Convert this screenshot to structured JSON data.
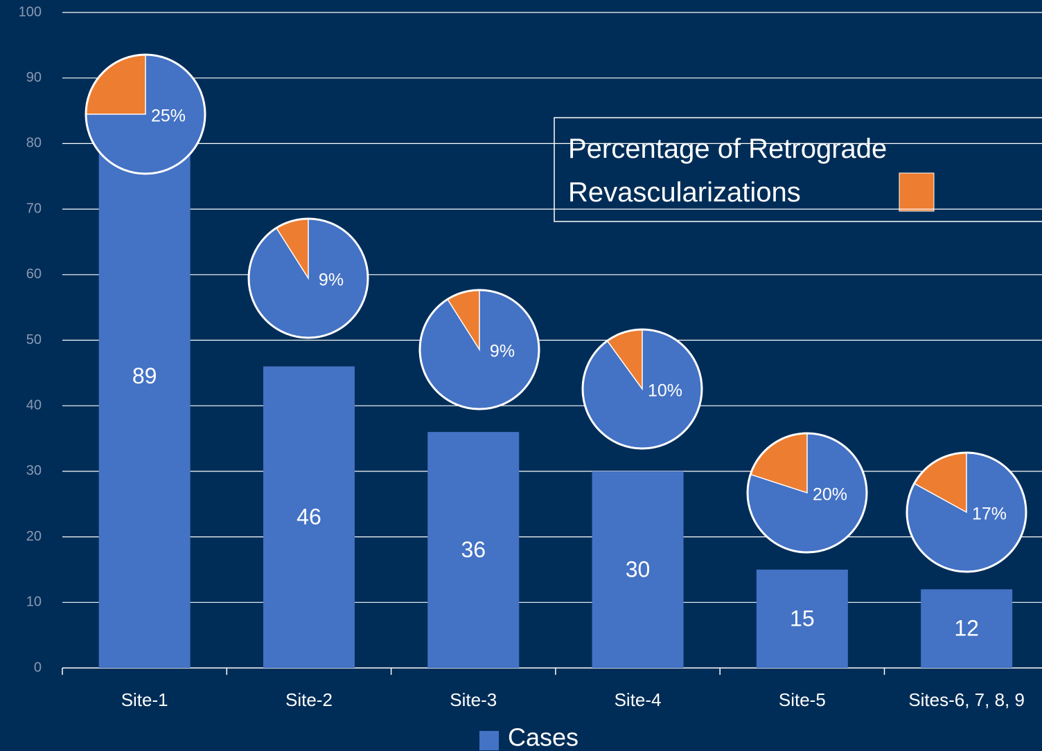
{
  "chart_data": {
    "type": "bar",
    "categories": [
      "Site-1",
      "Site-2",
      "Site-3",
      "Site-4",
      "Site-5",
      "Sites-6, 7, 8, 9"
    ],
    "series": [
      {
        "name": "Cases",
        "color": "#4472c4",
        "values": [
          89,
          46,
          36,
          30,
          15,
          12
        ]
      }
    ],
    "insets": {
      "type": "pie",
      "name": "Percentage of Retrograde Revascularizations",
      "color": "#ed7d31",
      "rest_color": "#4472c4",
      "values": [
        25,
        9,
        9,
        10,
        20,
        17
      ],
      "value_labels": [
        "25%",
        "9%",
        "9%",
        "10%",
        "20%",
        "17%"
      ]
    },
    "ylim": [
      0,
      100
    ],
    "yticks": [
      0,
      10,
      20,
      30,
      40,
      50,
      60,
      70,
      80,
      90,
      100
    ],
    "grid": true,
    "legend": "bottom"
  }
}
